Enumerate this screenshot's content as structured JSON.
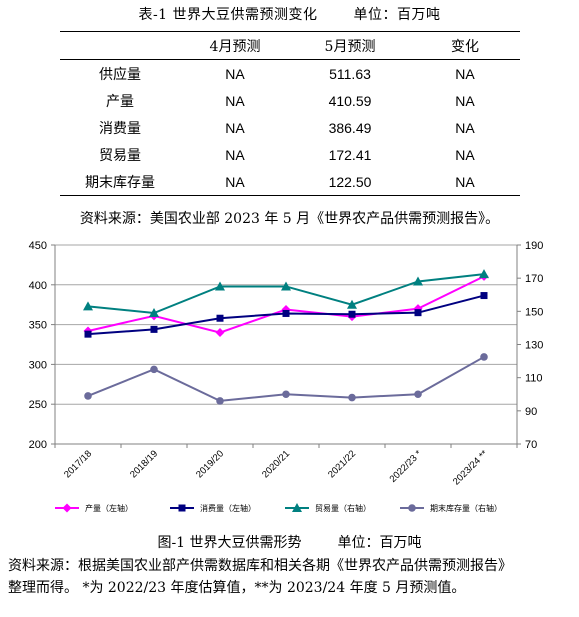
{
  "table": {
    "caption": "表-1 世界大豆供需预测变化",
    "unit": "单位：百万吨",
    "headers": [
      "",
      "4月预测",
      "5月预测",
      "变化"
    ],
    "rows": [
      {
        "item": "供应量",
        "april": "NA",
        "may": "511.63",
        "change": "NA"
      },
      {
        "item": "产量",
        "april": "NA",
        "may": "410.59",
        "change": "NA"
      },
      {
        "item": "消费量",
        "april": "NA",
        "may": "386.49",
        "change": "NA"
      },
      {
        "item": "贸易量",
        "april": "NA",
        "may": "172.41",
        "change": "NA"
      },
      {
        "item": "期末库存量",
        "april": "NA",
        "may": "122.50",
        "change": "NA"
      }
    ],
    "source": "资料来源：美国农业部 2023 年 5 月《世界农产品供需预测报告》。"
  },
  "figure": {
    "caption": "图-1 世界大豆供需形势",
    "unit": "单位：百万吨",
    "source_line1": "资料来源：根据美国农业部产供需数据库和相关各期《世界农产品供需预测报告》",
    "source_line2": "整理而得。 *为 2022/23 年度估算值，**为 2023/24 年度 5 月预测值。"
  },
  "chart_data": {
    "type": "line",
    "categories": [
      "2017/18",
      "2018/19",
      "2019/20",
      "2020/21",
      "2021/22",
      "2022/23 *",
      "2023/24 **"
    ],
    "left_axis": {
      "ylim": [
        200,
        450
      ],
      "ticks": [
        "200",
        "250",
        "300",
        "350",
        "400",
        "450"
      ]
    },
    "right_axis": {
      "ylim": [
        70,
        190
      ],
      "ticks": [
        "70",
        "90",
        "110",
        "130",
        "150",
        "170",
        "190"
      ]
    },
    "grid": "horizontal",
    "legend_position": "bottom",
    "series": [
      {
        "name": "产量（左轴）",
        "axis": "left",
        "color": "#ff00ff",
        "marker": "diamond",
        "values": [
          342,
          361,
          340,
          369,
          360,
          370,
          410.59
        ]
      },
      {
        "name": "消费量（左轴）",
        "axis": "left",
        "color": "#000080",
        "marker": "square",
        "values": [
          338,
          344,
          358,
          364,
          363,
          365,
          386.49
        ]
      },
      {
        "name": "贸易量（右轴）",
        "axis": "right",
        "color": "#008080",
        "marker": "triangle",
        "values": [
          153,
          149,
          165,
          165,
          154,
          168,
          172.41
        ]
      },
      {
        "name": "期末库存量（右轴）",
        "axis": "right",
        "color": "#6b6b9b",
        "marker": "circle",
        "values": [
          99,
          115,
          96,
          100,
          98,
          100,
          122.5
        ]
      }
    ]
  }
}
